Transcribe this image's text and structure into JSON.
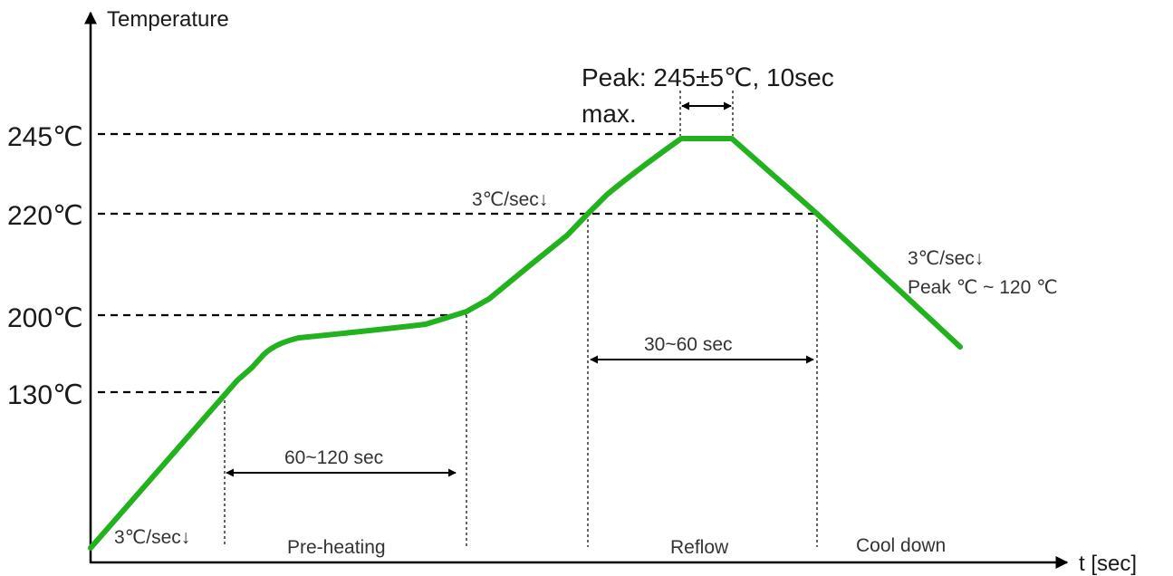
{
  "axes": {
    "y_label": "Temperature",
    "x_label": "t [sec]"
  },
  "temperature_levels": [
    "245℃",
    "220℃",
    "200℃",
    "130℃"
  ],
  "peak_note": {
    "line1": "Peak: 245±5℃, 10sec",
    "line2": "max."
  },
  "ramp_rates": {
    "preheat_ramp": "3℃/sec↓",
    "reflow_ramp": "3℃/sec↓",
    "cooldown_rate": "3℃/sec↓",
    "cooldown_range": "Peak ℃ ~ 120 ℃"
  },
  "durations": {
    "preheating": "60~120 sec",
    "reflow": "30~60 sec"
  },
  "phases": {
    "preheating": "Pre-heating",
    "reflow": "Reflow",
    "cooldown": "Cool down"
  },
  "colors": {
    "profile": "#22b21e",
    "lines": "#000000"
  }
}
